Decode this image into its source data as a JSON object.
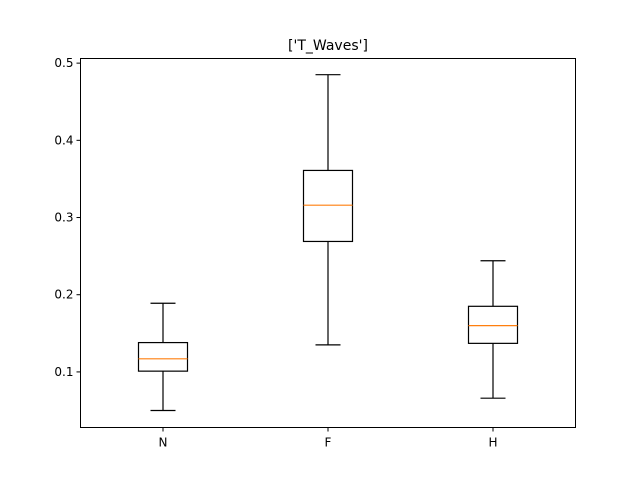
{
  "chart_data": {
    "type": "boxplot",
    "title": "['T_Waves']",
    "xlabel": "",
    "ylabel": "",
    "categories": [
      "N",
      "F",
      "H"
    ],
    "boxes": [
      {
        "label": "N",
        "whisker_low": 0.05,
        "q1": 0.101,
        "median": 0.117,
        "q3": 0.138,
        "whisker_high": 0.189
      },
      {
        "label": "F",
        "whisker_low": 0.135,
        "q1": 0.269,
        "median": 0.316,
        "q3": 0.361,
        "whisker_high": 0.485
      },
      {
        "label": "H",
        "whisker_low": 0.066,
        "q1": 0.137,
        "median": 0.16,
        "q3": 0.185,
        "whisker_high": 0.244
      }
    ],
    "ylim": [
      0.028,
      0.506
    ],
    "yticks": [
      0.1,
      0.2,
      0.3,
      0.4,
      0.5
    ],
    "ytick_labels": [
      "0.1",
      "0.2",
      "0.3",
      "0.4",
      "0.5"
    ],
    "grid": false,
    "colors": {
      "box": "#000000",
      "whisker": "#000000",
      "median": "#ff7f0e"
    }
  }
}
